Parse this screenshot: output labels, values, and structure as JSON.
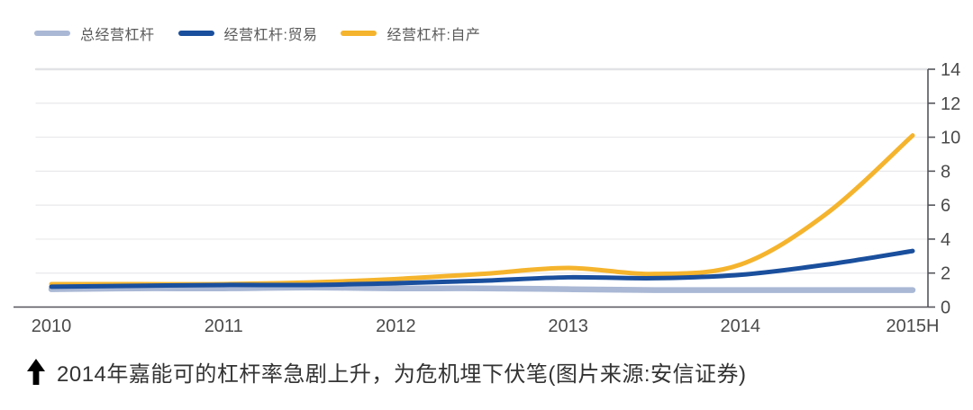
{
  "legend": {
    "items": [
      {
        "id": "total",
        "label": "总经营杠杆",
        "color": "#aab8d5"
      },
      {
        "id": "trade",
        "label": "经营杠杆:贸易",
        "color": "#1a4f9d"
      },
      {
        "id": "self_produced",
        "label": "经营杠杆:自产",
        "color": "#f5b42d"
      }
    ]
  },
  "caption": {
    "arrow_icon": "up-arrow",
    "text": "2014年嘉能可的杠杆率急剧上升，为危机埋下伏笔(图片来源:安信证券)"
  },
  "colors": {
    "series_total": "#aab8d5",
    "series_trade": "#1a4f9d",
    "series_self": "#f5b42d",
    "grid_line": "#e9e9eb",
    "axis_line": "#54555a",
    "tick_label": "#4a4a4a",
    "legend_text": "#595959",
    "caption_text": "#333333",
    "background": "#ffffff"
  },
  "chart_data": {
    "type": "line",
    "title": "",
    "xlabel": "",
    "ylabel": "",
    "x_tick_labels": [
      "2010",
      "2011",
      "2012",
      "2013",
      "2014",
      "2015H"
    ],
    "x_tick_positions": [
      0,
      2,
      4,
      6,
      8,
      10
    ],
    "x_layout_hint": "each series has 11 evenly spaced sample points spanning 2010 through 2015H (semi-annual)",
    "y_ticks": [
      0,
      2,
      4,
      6,
      8,
      10,
      12,
      14
    ],
    "ylim": [
      0,
      14
    ],
    "y_axis_side": "right",
    "grid": "horizontal",
    "legend_position": "top-left",
    "series": [
      {
        "id": "total",
        "name": "总经营杠杆",
        "color": "#aab8d5",
        "values": [
          1.05,
          1.1,
          1.1,
          1.15,
          1.1,
          1.1,
          1.05,
          1.0,
          1.0,
          1.0,
          1.0
        ]
      },
      {
        "id": "trade",
        "name": "经营杠杆:贸易",
        "color": "#1a4f9d",
        "values": [
          1.2,
          1.25,
          1.3,
          1.3,
          1.4,
          1.55,
          1.75,
          1.7,
          1.9,
          2.5,
          3.3
        ]
      },
      {
        "id": "self_produced",
        "name": "经营杠杆:自产",
        "color": "#f5b42d",
        "values": [
          1.35,
          1.35,
          1.35,
          1.45,
          1.65,
          1.95,
          2.3,
          1.95,
          2.5,
          5.5,
          10.1
        ]
      }
    ]
  }
}
